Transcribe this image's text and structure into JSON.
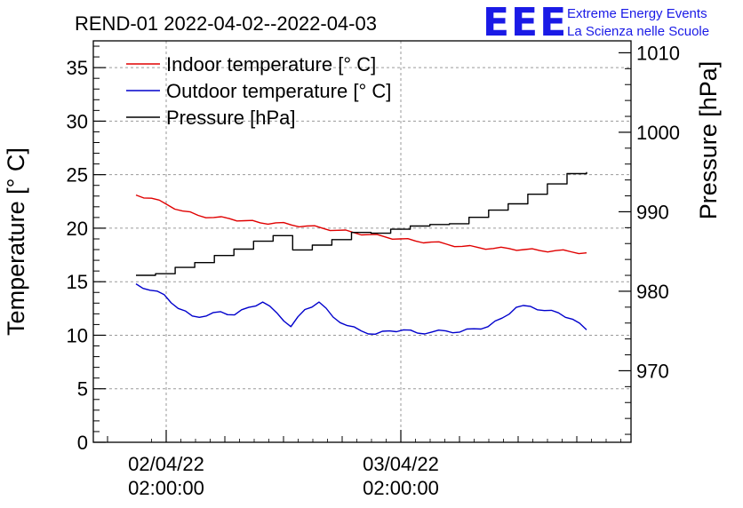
{
  "chart_data": {
    "type": "line",
    "title": "REND-01 2022-04-02--2022-04-03",
    "ylabel": "Temperature [° C]",
    "y2label": "Pressure [hPa]",
    "ylim": [
      0,
      37.5
    ],
    "y2lim": [
      961.0,
      1011.5
    ],
    "yticks": [
      0,
      5,
      10,
      15,
      20,
      25,
      30,
      35
    ],
    "y2ticks": [
      970,
      980,
      990,
      1000,
      1010
    ],
    "xticks": [
      {
        "line1": "02/04/22",
        "line2": "02:00:00"
      },
      {
        "line1": "03/04/22",
        "line2": "02:00:00"
      }
    ],
    "grid": true,
    "legend_position": "top-left",
    "series": [
      {
        "name": "Indoor temperature [° C]",
        "axis": "left",
        "color": "#e00000",
        "values": [
          23.1,
          22.8,
          22.2,
          21.6,
          21.2,
          21.0,
          20.9,
          20.7,
          20.5,
          20.5,
          20.3,
          20.2,
          20.0,
          19.8,
          19.6,
          19.4,
          19.2,
          19.0,
          18.8,
          18.7,
          18.5,
          18.3,
          18.2,
          18.1,
          18.1,
          18.0,
          17.9,
          17.9,
          17.8,
          17.7
        ]
      },
      {
        "name": "Outdoor temperature [° C]",
        "axis": "left",
        "color": "#0000cc",
        "values": [
          14.8,
          14.2,
          13.8,
          12.5,
          11.8,
          11.8,
          12.2,
          11.9,
          12.6,
          13.1,
          12.1,
          10.8,
          12.4,
          13.1,
          11.7,
          10.9,
          10.4,
          10.1,
          10.4,
          10.5,
          10.2,
          10.3,
          10.4,
          10.3,
          10.6,
          10.8,
          11.6,
          12.6,
          12.7,
          12.3,
          12.1,
          11.5,
          10.5
        ]
      },
      {
        "name": "Pressure [hPa]",
        "axis": "right",
        "color": "#000000",
        "values": [
          982.0,
          982.2,
          983.0,
          983.6,
          984.5,
          985.3,
          986.3,
          987.0,
          985.2,
          985.8,
          986.5,
          987.4,
          987.3,
          987.8,
          988.2,
          988.4,
          988.5,
          989.3,
          990.2,
          991.0,
          992.2,
          993.5,
          994.8,
          995.0
        ]
      }
    ]
  },
  "logo": {
    "text": "EEE",
    "line1": "Extreme Energy Events",
    "line2": "La Scienza nelle Scuole"
  }
}
